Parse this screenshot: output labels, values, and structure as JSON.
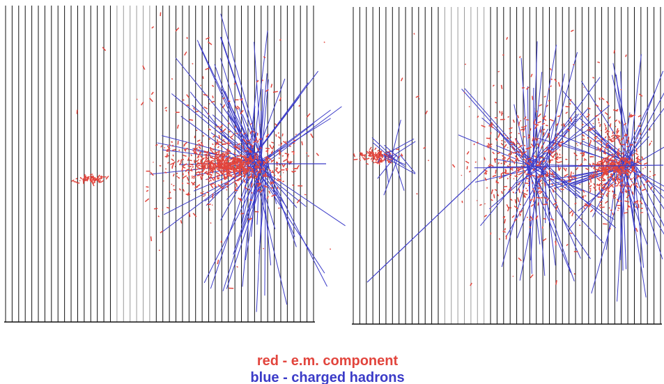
{
  "legend": {
    "em": "red - e.m. component",
    "hadrons": "blue - charged hadrons"
  }
}
